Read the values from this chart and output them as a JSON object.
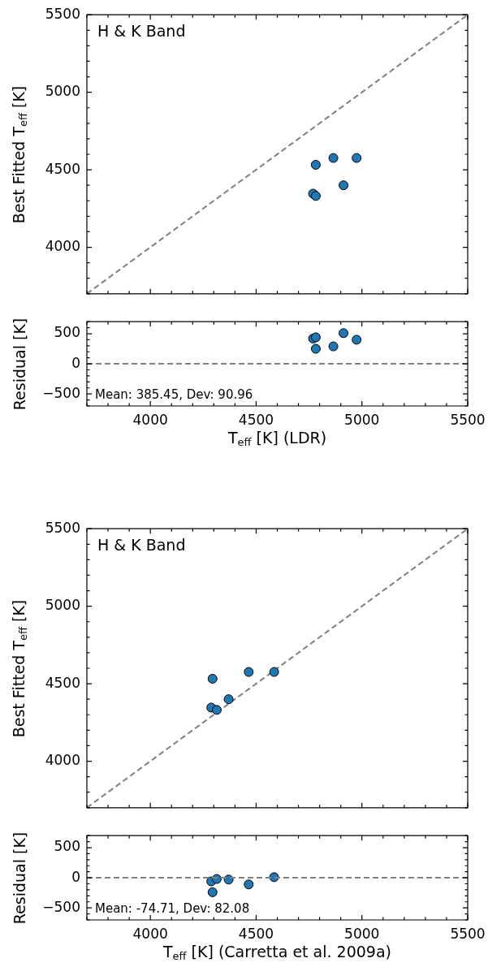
{
  "chart_data": [
    {
      "type": "scatter",
      "ylabel": "Best Fitted T$_{eff}$ [K]",
      "annotations": [
        "H & K Band"
      ],
      "xlim": [
        3700,
        5500
      ],
      "ylim": [
        3700,
        5500
      ],
      "tick_labels": "y",
      "marker": "circle",
      "xticks": [
        {
          "value": 3700,
          "label": null
        },
        {
          "value": 3800,
          "label": null
        },
        {
          "value": 3900,
          "label": null
        },
        4000,
        {
          "value": 4100,
          "label": null
        },
        {
          "value": 4200,
          "label": null
        },
        {
          "value": 4300,
          "label": null
        },
        {
          "value": 4400,
          "label": null
        },
        4500,
        {
          "value": 4600,
          "label": null
        },
        {
          "value": 4700,
          "label": null
        },
        {
          "value": 4800,
          "label": null
        },
        {
          "value": 4900,
          "label": null
        },
        5000,
        {
          "value": 5100,
          "label": null
        },
        {
          "value": 5200,
          "label": null
        },
        {
          "value": 5300,
          "label": null
        },
        {
          "value": 5400,
          "label": null
        },
        5500
      ],
      "yticks": [
        {
          "value": 3700,
          "label": null
        },
        {
          "value": 3800,
          "label": null
        },
        {
          "value": 3900,
          "label": null
        },
        4000,
        {
          "value": 4100,
          "label": null
        },
        {
          "value": 4200,
          "label": null
        },
        {
          "value": 4300,
          "label": null
        },
        {
          "value": 4400,
          "label": null
        },
        4500,
        {
          "value": 4600,
          "label": null
        },
        {
          "value": 4700,
          "label": null
        },
        {
          "value": 4800,
          "label": null
        },
        {
          "value": 4900,
          "label": null
        },
        5000,
        {
          "value": 5100,
          "label": null
        },
        {
          "value": 5200,
          "label": null
        },
        {
          "value": 5300,
          "label": null
        },
        {
          "value": 5400,
          "label": null
        },
        5500
      ],
      "series": [
        {
          "type": "line",
          "x": [
            3700,
            5500
          ],
          "values": [
            3700,
            5500
          ],
          "color": "#808080",
          "line_style": "dashed",
          "marker": "none"
        },
        {
          "x": [
            4782,
            4865,
            4975,
            4913,
            4769,
            4782
          ],
          "values": [
            4532,
            4576,
            4576,
            4400,
            4346,
            4331
          ],
          "color": "#1f77b4"
        }
      ]
    },
    {
      "type": "scatter",
      "xlabel": "T$_{eff}$ [K] (LDR)",
      "ylabel": "Residual [K]",
      "annotations": [
        "Mean: 385.45, Dev: 90.96"
      ],
      "xlim": [
        3700,
        5500
      ],
      "ylim": [
        -700,
        700
      ],
      "marker": "circle",
      "xticks": [
        {
          "value": 3700,
          "label": null
        },
        {
          "value": 3800,
          "label": null
        },
        {
          "value": 3900,
          "label": null
        },
        4000,
        {
          "value": 4100,
          "label": null
        },
        {
          "value": 4200,
          "label": null
        },
        {
          "value": 4300,
          "label": null
        },
        {
          "value": 4400,
          "label": null
        },
        4500,
        {
          "value": 4600,
          "label": null
        },
        {
          "value": 4700,
          "label": null
        },
        {
          "value": 4800,
          "label": null
        },
        {
          "value": 4900,
          "label": null
        },
        5000,
        {
          "value": 5100,
          "label": null
        },
        {
          "value": 5200,
          "label": null
        },
        {
          "value": 5300,
          "label": null
        },
        {
          "value": 5400,
          "label": null
        },
        5500
      ],
      "yticks": [
        {
          "value": -700,
          "label": null
        },
        {
          "value": -600,
          "label": null
        },
        {
          "value": -500,
          "label": "−500"
        },
        {
          "value": -400,
          "label": null
        },
        {
          "value": -300,
          "label": null
        },
        {
          "value": -200,
          "label": null
        },
        {
          "value": -100,
          "label": null
        },
        0,
        {
          "value": 100,
          "label": null
        },
        {
          "value": 200,
          "label": null
        },
        {
          "value": 300,
          "label": null
        },
        {
          "value": 400,
          "label": null
        },
        500,
        {
          "value": 600,
          "label": null
        },
        {
          "value": 700,
          "label": null
        }
      ],
      "ref_lines": [
        {
          "axis": "y",
          "value": 0,
          "color": "#808080",
          "line_style": "dashed"
        }
      ],
      "series": [
        {
          "x": [
            4769,
            4782,
            4782,
            4865,
            4913,
            4975
          ],
          "values": [
            420,
            440,
            250,
            290,
            510,
            400
          ],
          "color": "#1f77b4"
        }
      ]
    },
    {
      "type": "scatter",
      "ylabel": "Best Fitted T$_{eff}$ [K]",
      "annotations": [
        "H & K Band"
      ],
      "xlim": [
        3700,
        5500
      ],
      "ylim": [
        3700,
        5500
      ],
      "tick_labels": "y",
      "marker": "circle",
      "xticks": [
        {
          "value": 3700,
          "label": null
        },
        {
          "value": 3800,
          "label": null
        },
        {
          "value": 3900,
          "label": null
        },
        4000,
        {
          "value": 4100,
          "label": null
        },
        {
          "value": 4200,
          "label": null
        },
        {
          "value": 4300,
          "label": null
        },
        {
          "value": 4400,
          "label": null
        },
        4500,
        {
          "value": 4600,
          "label": null
        },
        {
          "value": 4700,
          "label": null
        },
        {
          "value": 4800,
          "label": null
        },
        {
          "value": 4900,
          "label": null
        },
        5000,
        {
          "value": 5100,
          "label": null
        },
        {
          "value": 5200,
          "label": null
        },
        {
          "value": 5300,
          "label": null
        },
        {
          "value": 5400,
          "label": null
        },
        5500
      ],
      "yticks": [
        {
          "value": 3700,
          "label": null
        },
        {
          "value": 3800,
          "label": null
        },
        {
          "value": 3900,
          "label": null
        },
        4000,
        {
          "value": 4100,
          "label": null
        },
        {
          "value": 4200,
          "label": null
        },
        {
          "value": 4300,
          "label": null
        },
        {
          "value": 4400,
          "label": null
        },
        4500,
        {
          "value": 4600,
          "label": null
        },
        {
          "value": 4700,
          "label": null
        },
        {
          "value": 4800,
          "label": null
        },
        {
          "value": 4900,
          "label": null
        },
        5000,
        {
          "value": 5100,
          "label": null
        },
        {
          "value": 5200,
          "label": null
        },
        {
          "value": 5300,
          "label": null
        },
        {
          "value": 5400,
          "label": null
        },
        5500
      ],
      "series": [
        {
          "type": "line",
          "x": [
            3700,
            5500
          ],
          "values": [
            3700,
            5500
          ],
          "color": "#808080",
          "line_style": "dashed",
          "marker": "none"
        },
        {
          "x": [
            4294,
            4465,
            4585,
            4370,
            4288,
            4314
          ],
          "values": [
            4532,
            4576,
            4576,
            4400,
            4346,
            4331
          ],
          "color": "#1f77b4"
        }
      ]
    },
    {
      "type": "scatter",
      "xlabel": "T$_{eff}$ [K] (Carretta et al. 2009a)",
      "ylabel": "Residual [K]",
      "annotations": [
        "Mean: -74.71, Dev: 82.08"
      ],
      "xlim": [
        3700,
        5500
      ],
      "ylim": [
        -700,
        700
      ],
      "marker": "circle",
      "xticks": [
        {
          "value": 3700,
          "label": null
        },
        {
          "value": 3800,
          "label": null
        },
        {
          "value": 3900,
          "label": null
        },
        4000,
        {
          "value": 4100,
          "label": null
        },
        {
          "value": 4200,
          "label": null
        },
        {
          "value": 4300,
          "label": null
        },
        {
          "value": 4400,
          "label": null
        },
        4500,
        {
          "value": 4600,
          "label": null
        },
        {
          "value": 4700,
          "label": null
        },
        {
          "value": 4800,
          "label": null
        },
        {
          "value": 4900,
          "label": null
        },
        5000,
        {
          "value": 5100,
          "label": null
        },
        {
          "value": 5200,
          "label": null
        },
        {
          "value": 5300,
          "label": null
        },
        {
          "value": 5400,
          "label": null
        },
        5500
      ],
      "yticks": [
        {
          "value": -700,
          "label": null
        },
        {
          "value": -600,
          "label": null
        },
        {
          "value": -500,
          "label": "−500"
        },
        {
          "value": -400,
          "label": null
        },
        {
          "value": -300,
          "label": null
        },
        {
          "value": -200,
          "label": null
        },
        {
          "value": -100,
          "label": null
        },
        0,
        {
          "value": 100,
          "label": null
        },
        {
          "value": 200,
          "label": null
        },
        {
          "value": 300,
          "label": null
        },
        {
          "value": 400,
          "label": null
        },
        500,
        {
          "value": 600,
          "label": null
        },
        {
          "value": 700,
          "label": null
        }
      ],
      "ref_lines": [
        {
          "axis": "y",
          "value": 0,
          "color": "#808080",
          "line_style": "dashed"
        }
      ],
      "series": [
        {
          "x": [
            4294,
            4288,
            4314,
            4370,
            4465,
            4585
          ],
          "values": [
            -240,
            -60,
            -20,
            -30,
            -110,
            10
          ],
          "color": "#1f77b4"
        }
      ]
    }
  ]
}
